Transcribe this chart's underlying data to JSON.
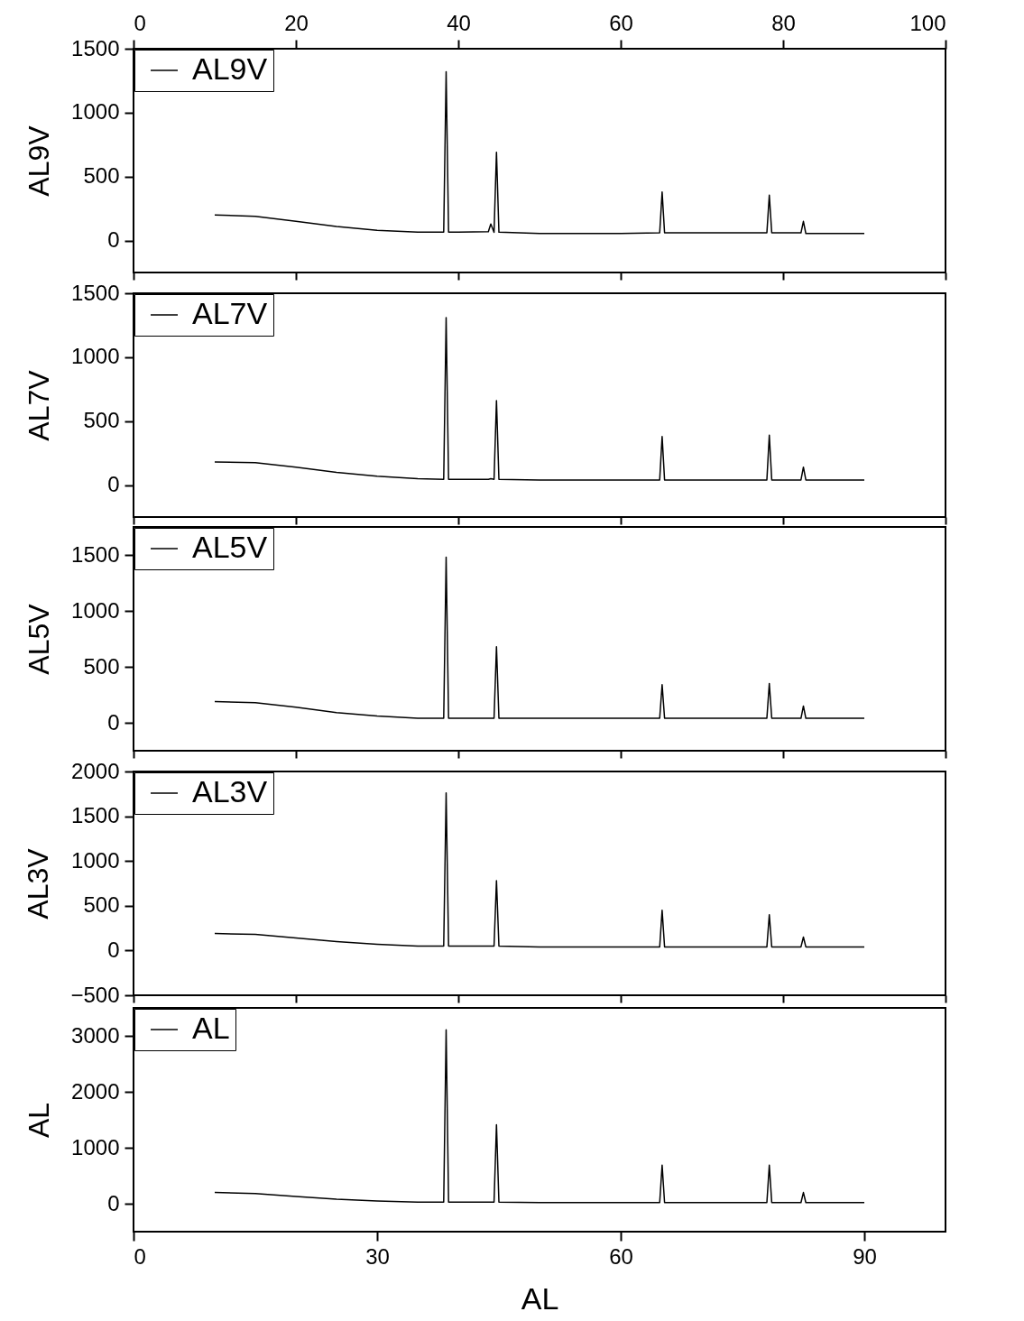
{
  "chart_data": [
    {
      "type": "line",
      "ylabel": "AL9V",
      "xlim": [
        0,
        100
      ],
      "xticks": [
        0,
        20,
        40,
        60,
        80,
        100
      ],
      "x2lim": [
        0,
        100
      ],
      "x2ticks": [
        0,
        20,
        40,
        60,
        80,
        100
      ],
      "ylim": [
        -250,
        1500
      ],
      "yticks": [
        0,
        500,
        1000,
        1500
      ],
      "tick_labels": "y",
      "legend": "top left",
      "x": [
        10,
        15,
        20,
        25,
        30,
        35,
        38.2,
        38.5,
        38.8,
        43.7,
        44.0,
        44.4,
        44.7,
        45.0,
        50,
        60,
        64.8,
        65.1,
        65.4,
        78.0,
        78.3,
        78.6,
        82.2,
        82.5,
        82.8,
        90
      ],
      "series": [
        {
          "name": "AL9V",
          "color": "#000000",
          "values": [
            200,
            190,
            150,
            110,
            80,
            65,
            65,
            1320,
            65,
            70,
            130,
            65,
            690,
            65,
            55,
            55,
            60,
            380,
            60,
            60,
            355,
            60,
            60,
            150,
            55,
            55
          ]
        }
      ]
    },
    {
      "type": "line",
      "ylabel": "AL7V",
      "xlim": [
        0,
        100
      ],
      "xticks": [
        0,
        20,
        40,
        60,
        80,
        100
      ],
      "ylim": [
        -250,
        1500
      ],
      "yticks": [
        0,
        500,
        1000,
        1500
      ],
      "tick_labels": "y",
      "legend": "top left",
      "x": [
        10,
        15,
        20,
        25,
        30,
        35,
        38.2,
        38.5,
        38.8,
        43.7,
        44.0,
        44.4,
        44.7,
        45.0,
        50,
        60,
        64.8,
        65.1,
        65.4,
        78.0,
        78.3,
        78.6,
        82.2,
        82.5,
        82.8,
        90
      ],
      "series": [
        {
          "name": "AL7V",
          "color": "#000000",
          "values": [
            180,
            175,
            140,
            100,
            70,
            50,
            45,
            1310,
            45,
            45,
            50,
            45,
            660,
            45,
            40,
            40,
            40,
            380,
            40,
            40,
            390,
            40,
            40,
            140,
            40,
            40
          ]
        }
      ]
    },
    {
      "type": "line",
      "ylabel": "AL5V",
      "xlim": [
        0,
        100
      ],
      "xticks": [
        0,
        20,
        40,
        60,
        80,
        100
      ],
      "ylim": [
        -250,
        1750
      ],
      "yticks": [
        0,
        500,
        1000,
        1500
      ],
      "tick_labels": "y",
      "legend": "top left",
      "x": [
        10,
        15,
        20,
        25,
        30,
        35,
        38.2,
        38.5,
        38.8,
        43.7,
        44.0,
        44.4,
        44.7,
        45.0,
        50,
        60,
        64.8,
        65.1,
        65.4,
        78.0,
        78.3,
        78.6,
        82.2,
        82.5,
        82.8,
        90
      ],
      "series": [
        {
          "name": "AL5V",
          "color": "#000000",
          "values": [
            190,
            180,
            140,
            90,
            60,
            40,
            40,
            1480,
            40,
            40,
            40,
            40,
            680,
            40,
            40,
            40,
            40,
            340,
            40,
            40,
            350,
            40,
            40,
            150,
            40,
            40
          ]
        }
      ]
    },
    {
      "type": "line",
      "ylabel": "AL3V",
      "xlim": [
        0,
        100
      ],
      "xticks": [
        0,
        20,
        40,
        60,
        80,
        100
      ],
      "ylim": [
        -500,
        2000
      ],
      "yticks": [
        -500,
        0,
        500,
        1000,
        1500,
        2000
      ],
      "tick_labels": "y",
      "legend": "top left",
      "x": [
        10,
        15,
        20,
        25,
        30,
        35,
        38.2,
        38.5,
        38.8,
        43.7,
        44.0,
        44.4,
        44.7,
        45.0,
        50,
        60,
        64.8,
        65.1,
        65.4,
        78.0,
        78.3,
        78.6,
        82.2,
        82.5,
        82.8,
        90
      ],
      "series": [
        {
          "name": "AL3V",
          "color": "#000000",
          "values": [
            190,
            180,
            140,
            100,
            70,
            50,
            50,
            1760,
            50,
            50,
            50,
            50,
            780,
            50,
            40,
            40,
            40,
            450,
            40,
            40,
            400,
            40,
            40,
            150,
            40,
            40
          ]
        }
      ]
    },
    {
      "type": "line",
      "ylabel": "AL",
      "xlabel": "AL",
      "xlim": [
        0,
        100
      ],
      "xticks": [
        0,
        30,
        60,
        90
      ],
      "ylim": [
        -500,
        3500
      ],
      "yticks": [
        0,
        1000,
        2000,
        3000
      ],
      "legend": "top left",
      "x": [
        10,
        15,
        20,
        25,
        30,
        35,
        38.2,
        38.5,
        38.8,
        43.7,
        44.0,
        44.4,
        44.7,
        45.0,
        50,
        60,
        64.8,
        65.1,
        65.4,
        78.0,
        78.3,
        78.6,
        82.2,
        82.5,
        82.8,
        90
      ],
      "series": [
        {
          "name": "AL",
          "color": "#000000",
          "values": [
            200,
            180,
            130,
            80,
            50,
            30,
            30,
            3110,
            30,
            30,
            30,
            30,
            1410,
            30,
            20,
            20,
            20,
            690,
            20,
            20,
            690,
            20,
            20,
            200,
            20,
            20
          ]
        }
      ]
    }
  ]
}
